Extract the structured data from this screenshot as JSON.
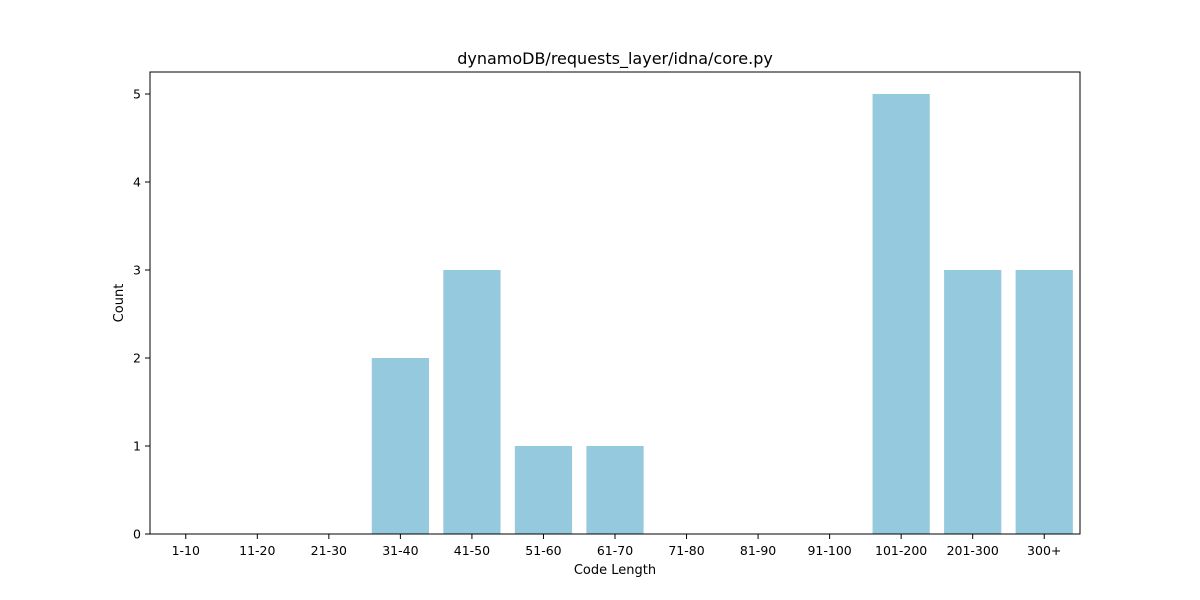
{
  "chart_data": {
    "type": "bar",
    "title": "dynamoDB/requests_layer/idna/core.py",
    "xlabel": "Code Length",
    "ylabel": "Count",
    "categories": [
      "1-10",
      "11-20",
      "21-30",
      "31-40",
      "41-50",
      "51-60",
      "61-70",
      "71-80",
      "81-90",
      "91-100",
      "101-200",
      "201-300",
      "300+"
    ],
    "values": [
      0,
      0,
      0,
      2,
      3,
      1,
      1,
      0,
      0,
      0,
      5,
      3,
      3
    ],
    "ylim": [
      0,
      5.25
    ],
    "yticks": [
      0,
      1,
      2,
      3,
      4,
      5
    ],
    "bar_color": "#95c9de",
    "grid": false,
    "legend": "none"
  }
}
